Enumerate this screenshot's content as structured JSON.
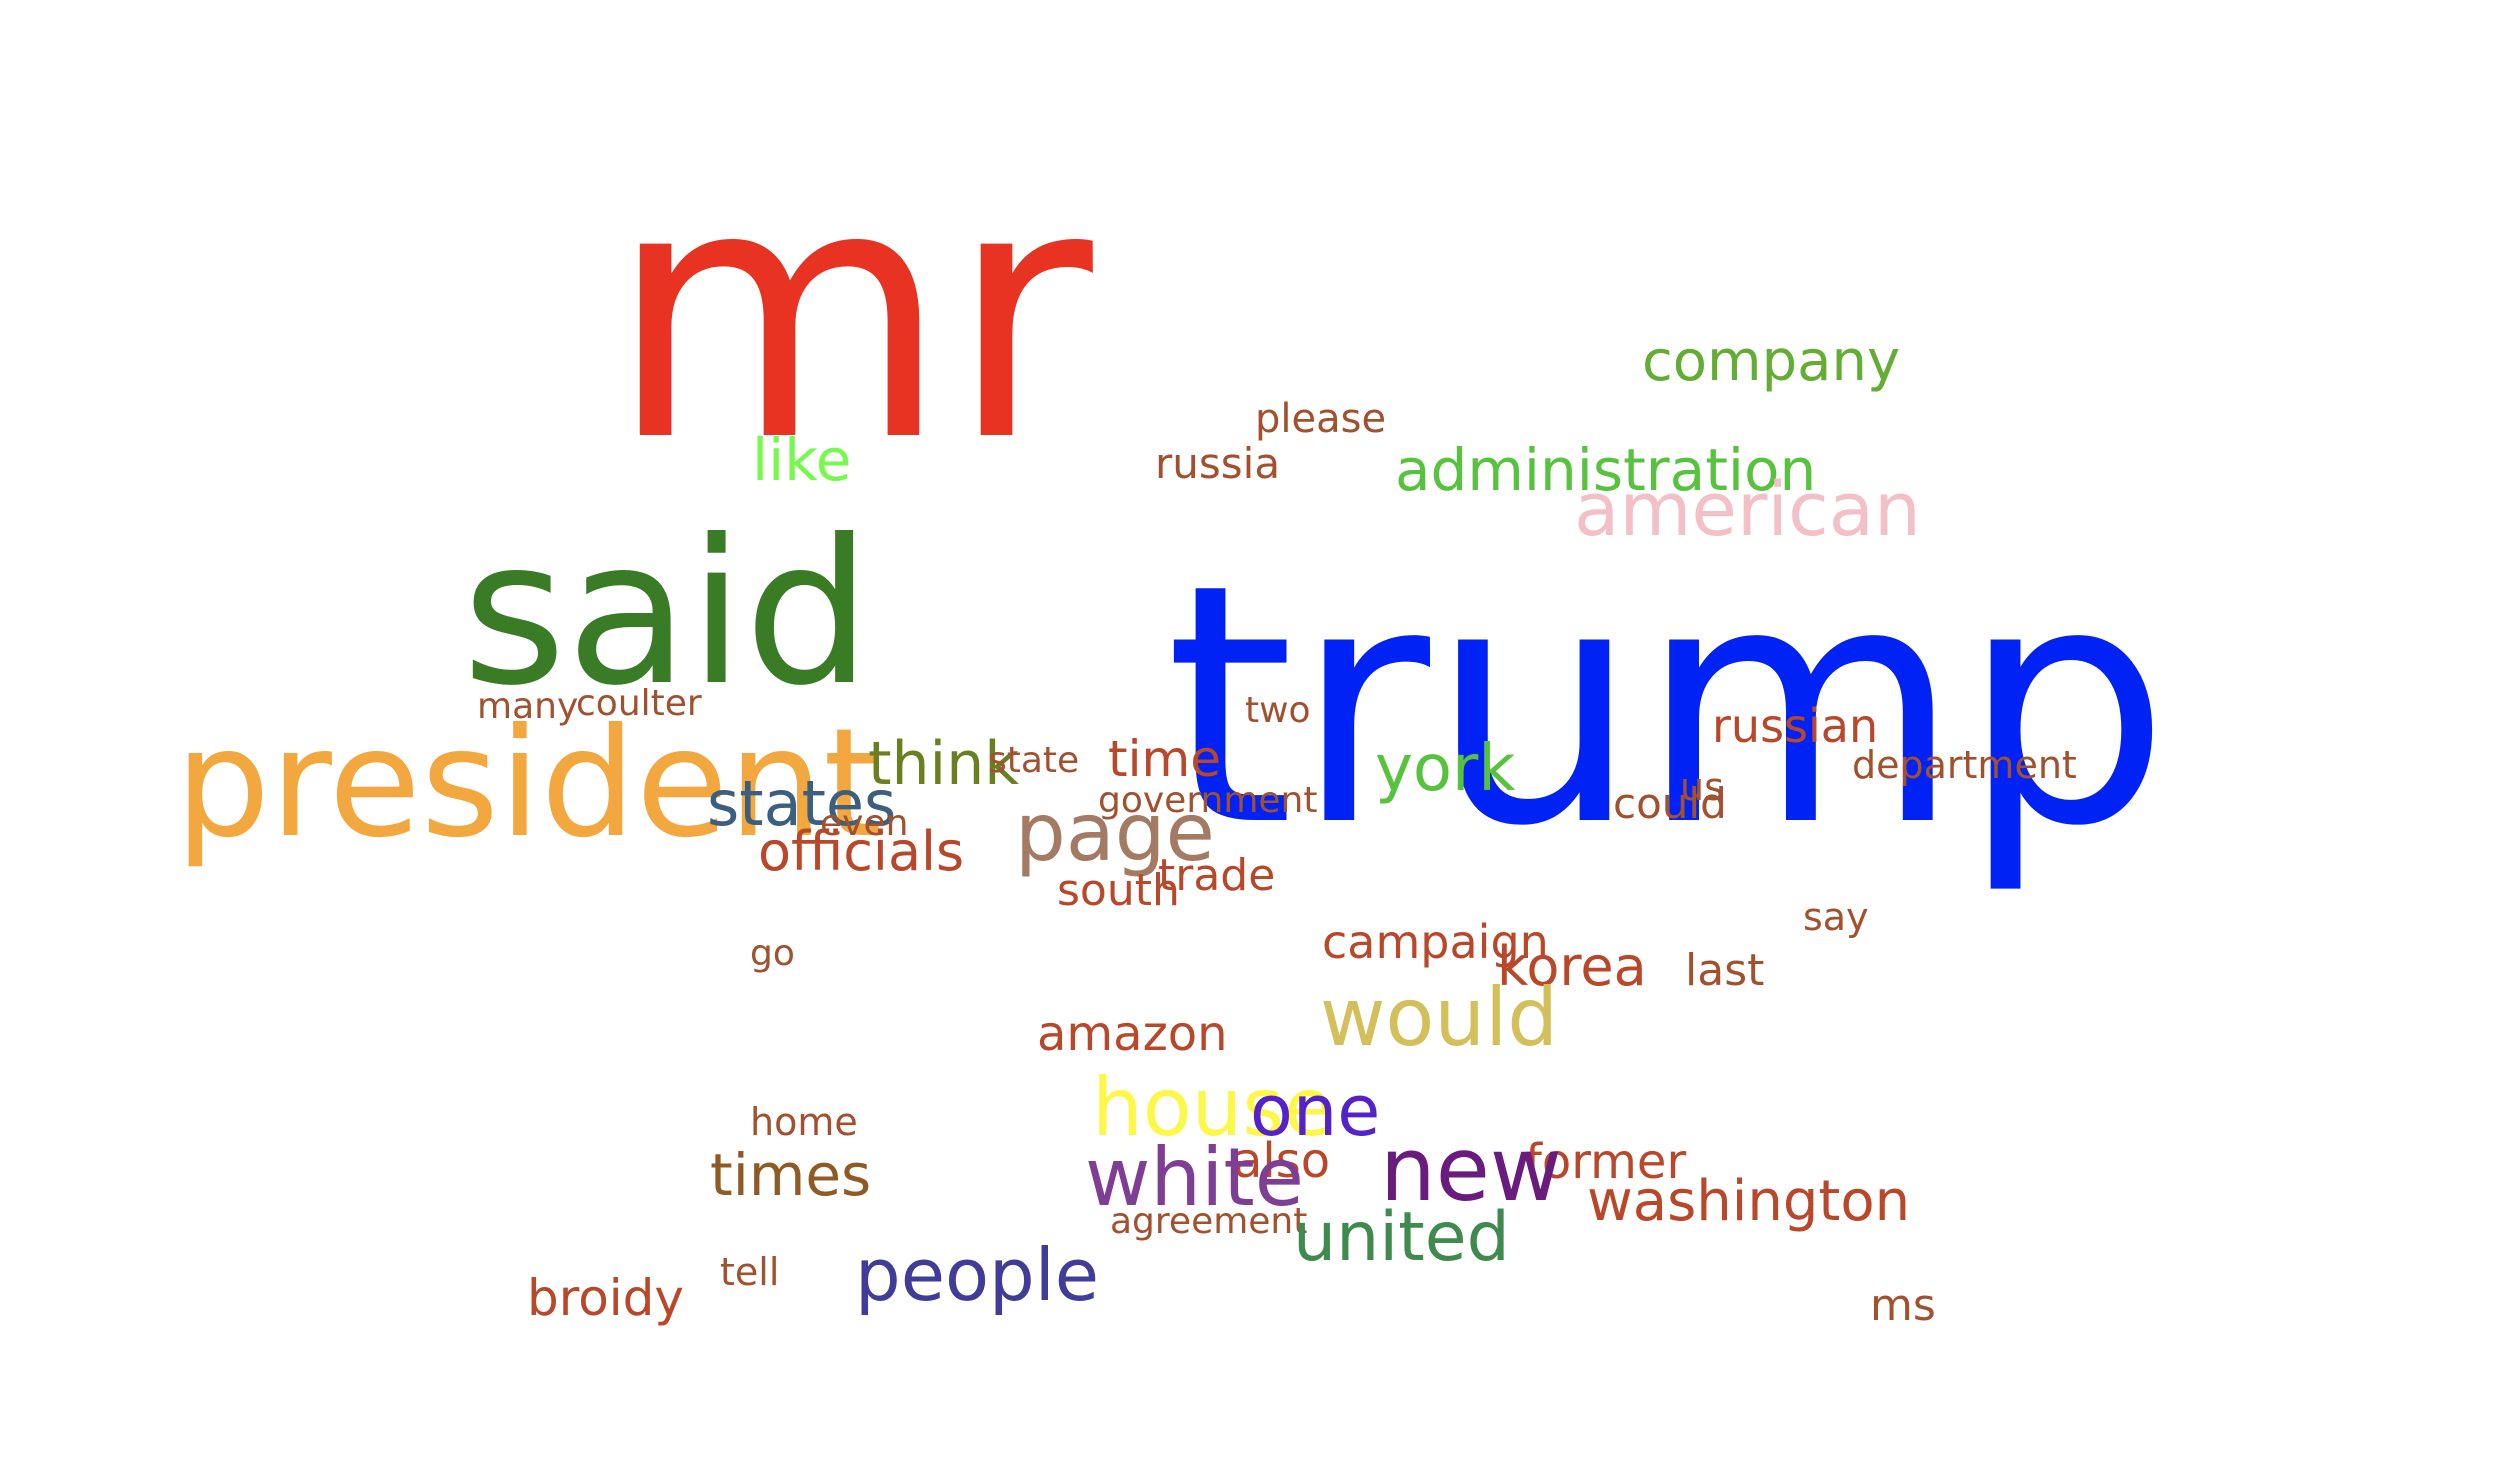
{
  "word_cloud": {
    "words": [
      {
        "text": "mr",
        "color": "#e83323"
      },
      {
        "text": "trump",
        "color": "#0022f5"
      },
      {
        "text": "said",
        "color": "#3a7b25"
      },
      {
        "text": "president",
        "color": "#f3a73f"
      },
      {
        "text": "company",
        "color": "#64ad34"
      },
      {
        "text": "please",
        "color": "#a2512f"
      },
      {
        "text": "like",
        "color": "#75f94c"
      },
      {
        "text": "russia",
        "color": "#a2512f"
      },
      {
        "text": "administration",
        "color": "#57c23d"
      },
      {
        "text": "american",
        "color": "#f3c0c8"
      },
      {
        "text": "many",
        "color": "#a2512f"
      },
      {
        "text": "coulter",
        "color": "#a2512f"
      },
      {
        "text": "two",
        "color": "#a2512f"
      },
      {
        "text": "russian",
        "color": "#b9472a"
      },
      {
        "text": "department",
        "color": "#a2512f"
      },
      {
        "text": "think",
        "color": "#6a7f1f"
      },
      {
        "text": "state",
        "color": "#a2512f"
      },
      {
        "text": "time",
        "color": "#b9472a"
      },
      {
        "text": "york",
        "color": "#57c23d"
      },
      {
        "text": "us",
        "color": "#a2512f"
      },
      {
        "text": "could",
        "color": "#a2512f"
      },
      {
        "text": "states",
        "color": "#3c5f7f"
      },
      {
        "text": "government",
        "color": "#a2512f"
      },
      {
        "text": "even",
        "color": "#a2512f"
      },
      {
        "text": "page",
        "color": "#a47a63"
      },
      {
        "text": "officials",
        "color": "#b9472a"
      },
      {
        "text": "trade",
        "color": "#b9472a"
      },
      {
        "text": "south",
        "color": "#b9472a"
      },
      {
        "text": "say",
        "color": "#a2512f"
      },
      {
        "text": "go",
        "color": "#a2512f"
      },
      {
        "text": "campaign",
        "color": "#b9472a"
      },
      {
        "text": "korea",
        "color": "#b9472a"
      },
      {
        "text": "last",
        "color": "#a2512f"
      },
      {
        "text": "would",
        "color": "#d4c05a"
      },
      {
        "text": "amazon",
        "color": "#b9472a"
      },
      {
        "text": "house",
        "color": "#fcf84a"
      },
      {
        "text": "one",
        "color": "#5522c9"
      },
      {
        "text": "home",
        "color": "#a2512f"
      },
      {
        "text": "also",
        "color": "#b9472a"
      },
      {
        "text": "former",
        "color": "#b9472a"
      },
      {
        "text": "times",
        "color": "#8f5a24"
      },
      {
        "text": "white",
        "color": "#7e3e94"
      },
      {
        "text": "new",
        "color": "#6a1b7e"
      },
      {
        "text": "washington",
        "color": "#b9472a"
      },
      {
        "text": "agreement",
        "color": "#a2512f"
      },
      {
        "text": "united",
        "color": "#3f8a4e"
      },
      {
        "text": "tell",
        "color": "#a2512f"
      },
      {
        "text": "broidy",
        "color": "#b9472a"
      },
      {
        "text": "people",
        "color": "#403c98"
      },
      {
        "text": "ms",
        "color": "#a2512f"
      }
    ]
  }
}
